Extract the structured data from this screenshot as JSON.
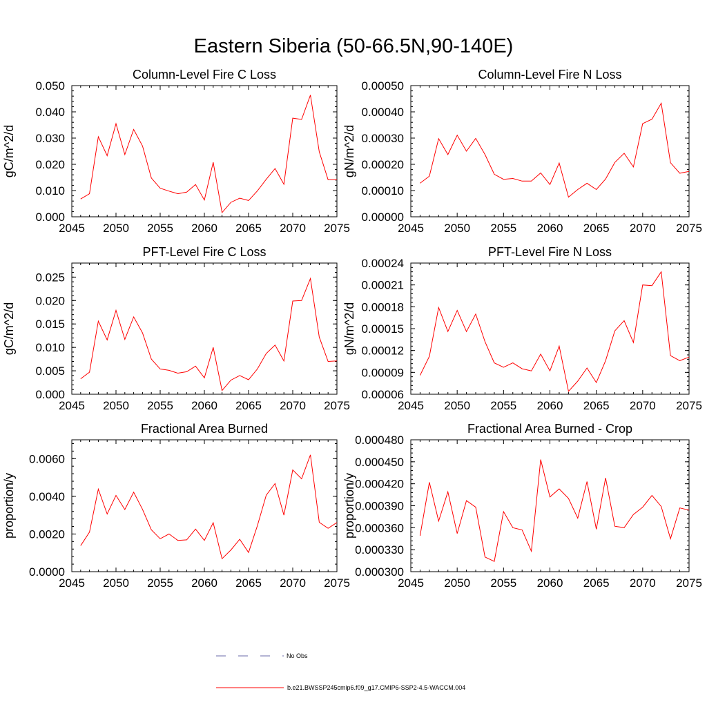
{
  "title": "Eastern Siberia (50-66.5N,90-140E)",
  "legend": {
    "entries": [
      {
        "label": "No Obs",
        "style": "dashed",
        "color": "#6a6aa8"
      },
      {
        "label": "b.e21.BWSSP245cmip6.f09_g17.CMIP6-SSP2-4.5-WACCM.004",
        "style": "solid",
        "color": "#ff0000"
      }
    ]
  },
  "chart_data": [
    {
      "type": "line",
      "title": "Column-Level Fire C Loss",
      "xlabel": "",
      "ylabel": "gC/m^2/d",
      "xlim": [
        2045,
        2075
      ],
      "ylim": [
        0.0,
        0.05
      ],
      "xticks": [
        "2045",
        "2050",
        "2055",
        "2060",
        "2065",
        "2070",
        "2075"
      ],
      "yticks": [
        "0.000",
        "0.010",
        "0.020",
        "0.030",
        "0.040",
        "0.050"
      ],
      "line_color": "#ff0000",
      "x": [
        2046,
        2047,
        2048,
        2049,
        2050,
        2051,
        2052,
        2053,
        2054,
        2055,
        2056,
        2057,
        2058,
        2059,
        2060,
        2061,
        2062,
        2063,
        2064,
        2065,
        2066,
        2067,
        2068,
        2069,
        2070,
        2071,
        2072,
        2073,
        2074,
        2075
      ],
      "y": [
        0.0068,
        0.0088,
        0.0305,
        0.0233,
        0.0355,
        0.0237,
        0.0333,
        0.027,
        0.0148,
        0.0109,
        0.0098,
        0.0088,
        0.0094,
        0.0123,
        0.0064,
        0.0208,
        0.0016,
        0.0055,
        0.0071,
        0.0062,
        0.0099,
        0.0143,
        0.0184,
        0.0124,
        0.0376,
        0.0371,
        0.0464,
        0.0248,
        0.0141,
        0.0141
      ]
    },
    {
      "type": "line",
      "title": "Column-Level Fire N Loss",
      "xlabel": "",
      "ylabel": "gN/m^2/d",
      "xlim": [
        2045,
        2075
      ],
      "ylim": [
        0.0,
        0.0005
      ],
      "xticks": [
        "2045",
        "2050",
        "2055",
        "2060",
        "2065",
        "2070",
        "2075"
      ],
      "yticks": [
        "0.00000",
        "0.00010",
        "0.00020",
        "0.00030",
        "0.00040",
        "0.00050"
      ],
      "line_color": "#ff0000",
      "x": [
        2046,
        2047,
        2048,
        2049,
        2050,
        2051,
        2052,
        2053,
        2054,
        2055,
        2056,
        2057,
        2058,
        2059,
        2060,
        2061,
        2062,
        2063,
        2064,
        2065,
        2066,
        2067,
        2068,
        2069,
        2070,
        2071,
        2072,
        2073,
        2074,
        2075
      ],
      "y": [
        0.000128,
        0.000155,
        0.000298,
        0.000237,
        0.000311,
        0.00025,
        0.000299,
        0.000237,
        0.000162,
        0.000143,
        0.000146,
        0.000136,
        0.000136,
        0.000167,
        0.000123,
        0.000205,
        7.5e-05,
        0.000104,
        0.000128,
        0.000104,
        0.000144,
        0.000207,
        0.000242,
        0.00019,
        0.000355,
        0.000372,
        0.000433,
        0.000206,
        0.000166,
        0.000173
      ]
    },
    {
      "type": "line",
      "title": "PFT-Level Fire C Loss",
      "xlabel": "",
      "ylabel": "gC/m^2/d",
      "xlim": [
        2045,
        2075
      ],
      "ylim": [
        0.0,
        0.028
      ],
      "xticks": [
        "2045",
        "2050",
        "2055",
        "2060",
        "2065",
        "2070",
        "2075"
      ],
      "yticks": [
        "0.000",
        "0.005",
        "0.010",
        "0.015",
        "0.020",
        "0.025"
      ],
      "line_color": "#ff0000",
      "x": [
        2046,
        2047,
        2048,
        2049,
        2050,
        2051,
        2052,
        2053,
        2054,
        2055,
        2056,
        2057,
        2058,
        2059,
        2060,
        2061,
        2062,
        2063,
        2064,
        2065,
        2066,
        2067,
        2068,
        2069,
        2070,
        2071,
        2072,
        2073,
        2074,
        2075
      ],
      "y": [
        0.0033,
        0.0047,
        0.0156,
        0.0116,
        0.0179,
        0.0117,
        0.0165,
        0.0131,
        0.0075,
        0.0054,
        0.0051,
        0.0045,
        0.0048,
        0.006,
        0.0035,
        0.01,
        0.0008,
        0.003,
        0.004,
        0.0031,
        0.0054,
        0.0087,
        0.0105,
        0.0071,
        0.0199,
        0.02,
        0.0247,
        0.0122,
        0.007,
        0.0071
      ]
    },
    {
      "type": "line",
      "title": "PFT-Level Fire N Loss",
      "xlabel": "",
      "ylabel": "gN/m^2/d",
      "xlim": [
        2045,
        2075
      ],
      "ylim": [
        6e-05,
        0.00024
      ],
      "xticks": [
        "2045",
        "2050",
        "2055",
        "2060",
        "2065",
        "2070",
        "2075"
      ],
      "yticks": [
        "0.00006",
        "0.00009",
        "0.00012",
        "0.00015",
        "0.00018",
        "0.00021",
        "0.00024"
      ],
      "line_color": "#ff0000",
      "x": [
        2046,
        2047,
        2048,
        2049,
        2050,
        2051,
        2052,
        2053,
        2054,
        2055,
        2056,
        2057,
        2058,
        2059,
        2060,
        2061,
        2062,
        2063,
        2064,
        2065,
        2066,
        2067,
        2068,
        2069,
        2070,
        2071,
        2072,
        2073,
        2074,
        2075
      ],
      "y": [
        8.6e-05,
        0.000112,
        0.000179,
        0.000146,
        0.000175,
        0.000146,
        0.00017,
        0.000132,
        0.000103,
        9.7e-05,
        0.000103,
        9.5e-05,
        9.2e-05,
        0.000115,
        9.2e-05,
        0.000126,
        6.4e-05,
        7.8e-05,
        9.6e-05,
        7.6e-05,
        0.000106,
        0.000147,
        0.000161,
        0.000131,
        0.00021,
        0.000209,
        0.000228,
        0.000113,
        0.000106,
        0.000111
      ]
    },
    {
      "type": "line",
      "title": "Fractional Area Burned",
      "xlabel": "",
      "ylabel": "proportion/y",
      "xlim": [
        2045,
        2075
      ],
      "ylim": [
        0.0,
        0.007
      ],
      "xticks": [
        "2045",
        "2050",
        "2055",
        "2060",
        "2065",
        "2070",
        "2075"
      ],
      "yticks": [
        "0.0000",
        "0.0020",
        "0.0040",
        "0.0060"
      ],
      "line_color": "#ff0000",
      "x": [
        2046,
        2047,
        2048,
        2049,
        2050,
        2051,
        2052,
        2053,
        2054,
        2055,
        2056,
        2057,
        2058,
        2059,
        2060,
        2061,
        2062,
        2063,
        2064,
        2065,
        2066,
        2067,
        2068,
        2069,
        2070,
        2071,
        2072,
        2073,
        2074,
        2075
      ],
      "y": [
        0.00138,
        0.0021,
        0.00438,
        0.00306,
        0.00405,
        0.0033,
        0.00422,
        0.00331,
        0.00222,
        0.00175,
        0.002,
        0.00166,
        0.00169,
        0.00226,
        0.00166,
        0.0026,
        0.00069,
        0.00115,
        0.00172,
        0.00102,
        0.00244,
        0.00406,
        0.00468,
        0.003,
        0.0054,
        0.00493,
        0.0062,
        0.00262,
        0.0023,
        0.00261
      ]
    },
    {
      "type": "line",
      "title": "Fractional Area Burned - Crop",
      "xlabel": "",
      "ylabel": "proportion/y",
      "xlim": [
        2045,
        2075
      ],
      "ylim": [
        0.0003,
        0.00048
      ],
      "xticks": [
        "2045",
        "2050",
        "2055",
        "2060",
        "2065",
        "2070",
        "2075"
      ],
      "yticks": [
        "0.000300",
        "0.000330",
        "0.000360",
        "0.000390",
        "0.000420",
        "0.000450",
        "0.000480"
      ],
      "line_color": "#ff0000",
      "x": [
        2046,
        2047,
        2048,
        2049,
        2050,
        2051,
        2052,
        2053,
        2054,
        2055,
        2056,
        2057,
        2058,
        2059,
        2060,
        2061,
        2062,
        2063,
        2064,
        2065,
        2066,
        2067,
        2068,
        2069,
        2070,
        2071,
        2072,
        2073,
        2074,
        2075
      ],
      "y": [
        0.000349,
        0.000422,
        0.000369,
        0.000409,
        0.000352,
        0.000397,
        0.000388,
        0.00032,
        0.000314,
        0.000382,
        0.00036,
        0.000357,
        0.000328,
        0.000453,
        0.000402,
        0.000413,
        0.0004,
        0.000373,
        0.000423,
        0.000358,
        0.000428,
        0.000362,
        0.00036,
        0.000378,
        0.000388,
        0.000404,
        0.000389,
        0.000345,
        0.000387,
        0.000384
      ]
    }
  ]
}
